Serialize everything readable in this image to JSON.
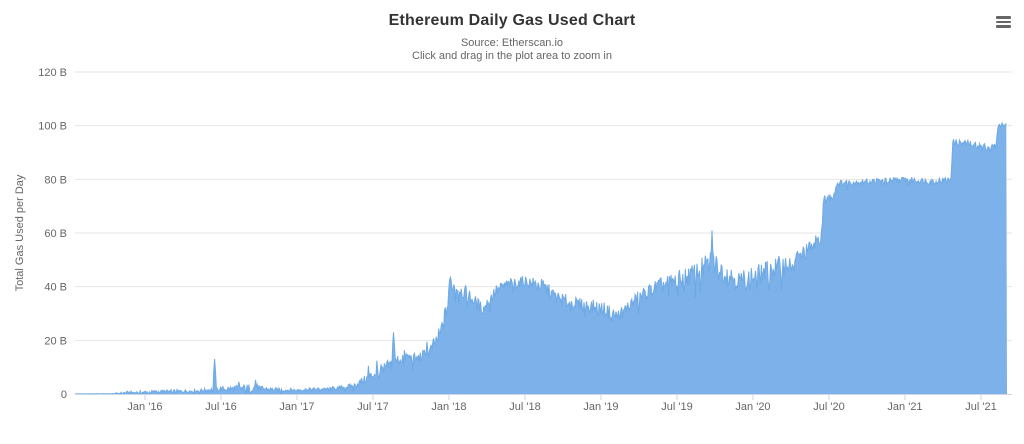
{
  "chart_data": {
    "type": "area",
    "title": "Ethereum Daily Gas Used Chart",
    "source": "Source: Etherscan.io",
    "zoom_hint": "Click and drag in the plot area to zoom in",
    "ylabel": "Total Gas Used per Day",
    "unit": "B",
    "legend": "none",
    "grid": "horizontal",
    "ylim": [
      0,
      120
    ],
    "y_tick_step": 20,
    "y_tick_labels": [
      "0",
      "20 B",
      "40 B",
      "60 B",
      "80 B",
      "100 B",
      "120 B"
    ],
    "x_tick_labels": [
      "Jan '16",
      "Jul '16",
      "Jan '17",
      "Jul '17",
      "Jan '18",
      "Jul '18",
      "Jan '19",
      "Jul '19",
      "Jan '20",
      "Jul '20",
      "Jan '21",
      "Jul '21"
    ],
    "x_range": [
      "2015-07-15",
      "2021-09-02"
    ],
    "series_name": "Total Gas Used per Day",
    "anchors_comment": "date, avg daily gas used (billions), day-to-day jitter amplitude (billions)",
    "anchors": [
      [
        "2015-08-01",
        0.03,
        0.03
      ],
      [
        "2015-10-15",
        0.1,
        0.1
      ],
      [
        "2015-11-15",
        0.45,
        0.55
      ],
      [
        "2016-01-05",
        0.7,
        0.65
      ],
      [
        "2016-03-01",
        0.95,
        0.7
      ],
      [
        "2016-05-01",
        1.15,
        0.55
      ],
      [
        "2016-06-15",
        1.7,
        0.9
      ],
      [
        "2016-08-01",
        2.0,
        1.2
      ],
      [
        "2016-09-22",
        2.4,
        1.6
      ],
      [
        "2016-10-20",
        1.8,
        0.9
      ],
      [
        "2016-12-01",
        1.4,
        0.7
      ],
      [
        "2017-02-01",
        1.7,
        0.6
      ],
      [
        "2017-04-01",
        2.1,
        0.7
      ],
      [
        "2017-05-15",
        3.0,
        1.0
      ],
      [
        "2017-06-15",
        5.5,
        1.8
      ],
      [
        "2017-07-15",
        8.5,
        2.2
      ],
      [
        "2017-08-15",
        11.0,
        2.5
      ],
      [
        "2017-09-15",
        14.0,
        2.5
      ],
      [
        "2017-10-15",
        13.0,
        2.0
      ],
      [
        "2017-11-15",
        15.5,
        2.5
      ],
      [
        "2017-12-10",
        22.0,
        3.5
      ],
      [
        "2018-01-10",
        40.5,
        2.8
      ],
      [
        "2018-02-15",
        37.0,
        2.8
      ],
      [
        "2018-03-22",
        31.5,
        2.2
      ],
      [
        "2018-04-20",
        38.0,
        2.5
      ],
      [
        "2018-05-15",
        40.5,
        2.2
      ],
      [
        "2018-07-01",
        42.0,
        2.2
      ],
      [
        "2018-08-15",
        40.0,
        2.8
      ],
      [
        "2018-09-15",
        36.0,
        2.5
      ],
      [
        "2018-11-01",
        33.5,
        2.5
      ],
      [
        "2019-01-01",
        32.0,
        2.8
      ],
      [
        "2019-02-10",
        29.0,
        2.5
      ],
      [
        "2019-04-01",
        36.0,
        2.8
      ],
      [
        "2019-05-15",
        40.0,
        3.0
      ],
      [
        "2019-07-01",
        42.0,
        3.8
      ],
      [
        "2019-08-15",
        45.0,
        4.0
      ],
      [
        "2019-09-25",
        49.0,
        5.0
      ],
      [
        "2019-10-15",
        46.0,
        4.5
      ],
      [
        "2019-12-01",
        42.0,
        4.0
      ],
      [
        "2020-01-15",
        44.5,
        4.0
      ],
      [
        "2020-03-01",
        47.0,
        4.5
      ],
      [
        "2020-04-10",
        50.0,
        3.5
      ],
      [
        "2020-05-15",
        54.0,
        3.0
      ],
      [
        "2020-06-14",
        59.0,
        2.5
      ],
      [
        "2020-06-18",
        72.0,
        2.0
      ],
      [
        "2020-07-12",
        74.0,
        2.0
      ],
      [
        "2020-07-20",
        78.5,
        1.2
      ],
      [
        "2020-10-01",
        79.2,
        1.2
      ],
      [
        "2021-01-01",
        79.8,
        1.2
      ],
      [
        "2021-03-01",
        79.3,
        1.2
      ],
      [
        "2021-04-20",
        79.8,
        1.2
      ],
      [
        "2021-04-24",
        93.8,
        1.3
      ],
      [
        "2021-06-01",
        93.3,
        1.3
      ],
      [
        "2021-07-15",
        92.0,
        1.3
      ],
      [
        "2021-08-08",
        92.3,
        1.2
      ],
      [
        "2021-08-10",
        99.8,
        0.8
      ],
      [
        "2021-09-02",
        100.5,
        0.5
      ]
    ],
    "spikes_comment": "notable single-event peaks: date, peak value (billions), half-width in months",
    "spikes": [
      [
        "2016-06-17",
        13.0,
        0.12
      ],
      [
        "2016-08-13",
        4.6,
        0.1
      ],
      [
        "2016-09-23",
        5.2,
        0.1
      ],
      [
        "2017-06-21",
        10.5,
        0.1
      ],
      [
        "2017-07-10",
        12.5,
        0.1
      ],
      [
        "2017-08-19",
        23.0,
        0.15
      ],
      [
        "2017-11-08",
        19.5,
        0.14
      ],
      [
        "2018-01-05",
        43.5,
        0.4
      ],
      [
        "2019-09-24",
        61.0,
        0.18
      ],
      [
        "2021-08-21",
        101.0,
        0.14
      ]
    ],
    "colors": {
      "area": "#7cb2e9",
      "area_line": "#6fa9e4",
      "gridline": "#e6e6e6",
      "axis_line": "#ccd6eb",
      "tick": "#ccd6eb",
      "title": "#333333",
      "subtitle": "#666666",
      "label": "#666666",
      "menu_icon": "#666666"
    }
  },
  "ui": {
    "context_menu_icon": "hamburger",
    "context_menu_tooltip": "Chart context menu"
  }
}
